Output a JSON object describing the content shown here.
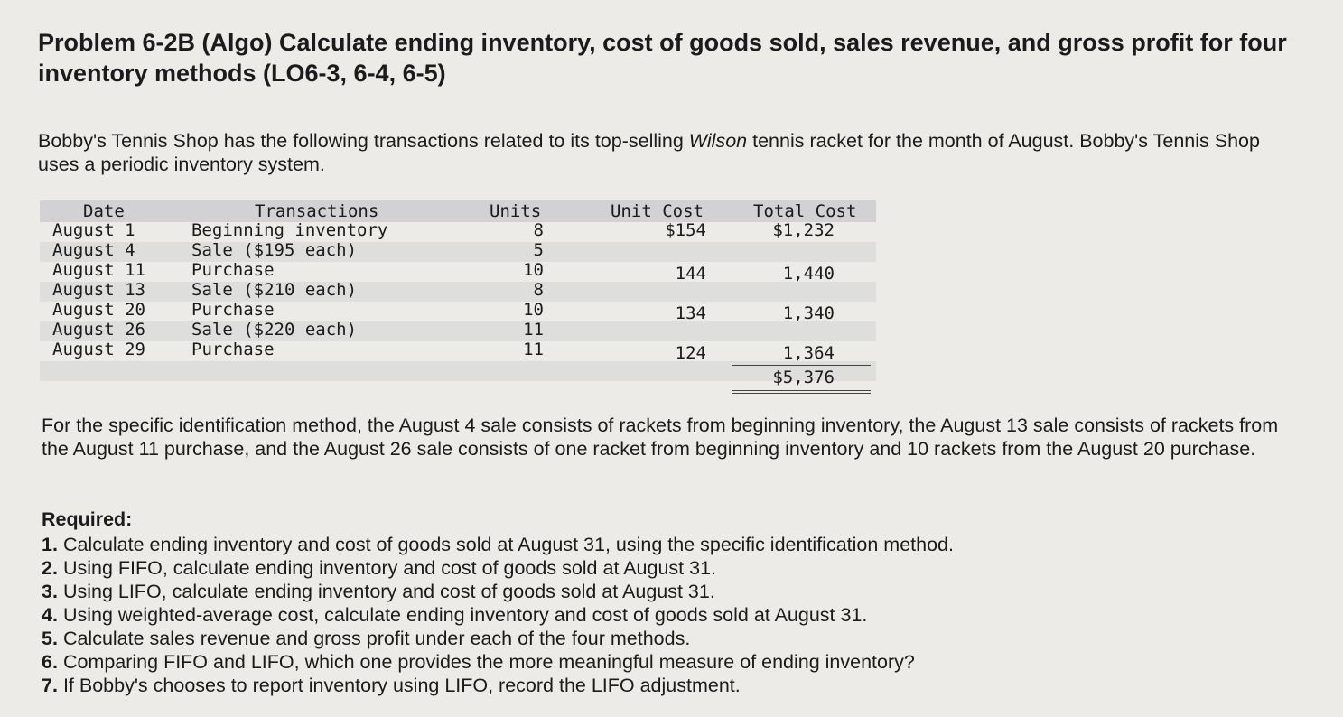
{
  "title": "Problem 6-2B (Algo) Calculate ending inventory, cost of goods sold, sales revenue, and gross profit for four inventory methods (LO6-3, 6-4, 6-5)",
  "intro": {
    "before": "Bobby's Tennis Shop has the following transactions related to its top-selling ",
    "brand": "Wilson",
    "after": " tennis racket for the month of August. Bobby's Tennis Shop uses a periodic inventory system."
  },
  "table": {
    "headers": {
      "date": "Date",
      "transactions": "Transactions",
      "units": "Units",
      "unit_cost": "Unit Cost",
      "total_cost": "Total Cost"
    },
    "rows": [
      {
        "date": "August 1",
        "transaction": "Beginning inventory",
        "units": "8",
        "unit_cost": "$154",
        "total_cost": "$1,232"
      },
      {
        "date": "August 4",
        "transaction": "Sale ($195 each)",
        "units": "5",
        "unit_cost": "",
        "total_cost": ""
      },
      {
        "date": "August 11",
        "transaction": "Purchase",
        "units": "10",
        "unit_cost": "144",
        "total_cost": "1,440"
      },
      {
        "date": "August 13",
        "transaction": "Sale ($210 each)",
        "units": "8",
        "unit_cost": "",
        "total_cost": ""
      },
      {
        "date": "August 20",
        "transaction": "Purchase",
        "units": "10",
        "unit_cost": "134",
        "total_cost": "1,340"
      },
      {
        "date": "August 26",
        "transaction": "Sale ($220 each)",
        "units": "11",
        "unit_cost": "",
        "total_cost": ""
      },
      {
        "date": "August 29",
        "transaction": "Purchase",
        "units": "11",
        "unit_cost": "124",
        "total_cost": "1,364"
      }
    ],
    "grand_total": "$5,376"
  },
  "specific_id_note": "For the specific identification method, the August 4 sale consists of rackets from beginning inventory, the August 13 sale consists of rackets from the August 11 purchase, and the August 26 sale consists of one racket from beginning inventory and 10 rackets from the August 20 purchase.",
  "required": {
    "heading": "Required:",
    "items": [
      {
        "num": "1.",
        "text": "Calculate ending inventory and cost of goods sold at August 31, using the specific identification method."
      },
      {
        "num": "2.",
        "text": "Using FIFO, calculate ending inventory and cost of goods sold at August 31."
      },
      {
        "num": "3.",
        "text": "Using LIFO, calculate ending inventory and cost of goods sold at August 31."
      },
      {
        "num": "4.",
        "text": "Using weighted-average cost, calculate ending inventory and cost of goods sold at August 31."
      },
      {
        "num": "5.",
        "text": "Calculate sales revenue and gross profit under each of the four methods."
      },
      {
        "num": "6.",
        "text": "Comparing FIFO and LIFO, which one provides the more meaningful measure of ending inventory?"
      },
      {
        "num": "7.",
        "text": "If Bobby's chooses to report inventory using LIFO, record the LIFO adjustment."
      }
    ]
  }
}
